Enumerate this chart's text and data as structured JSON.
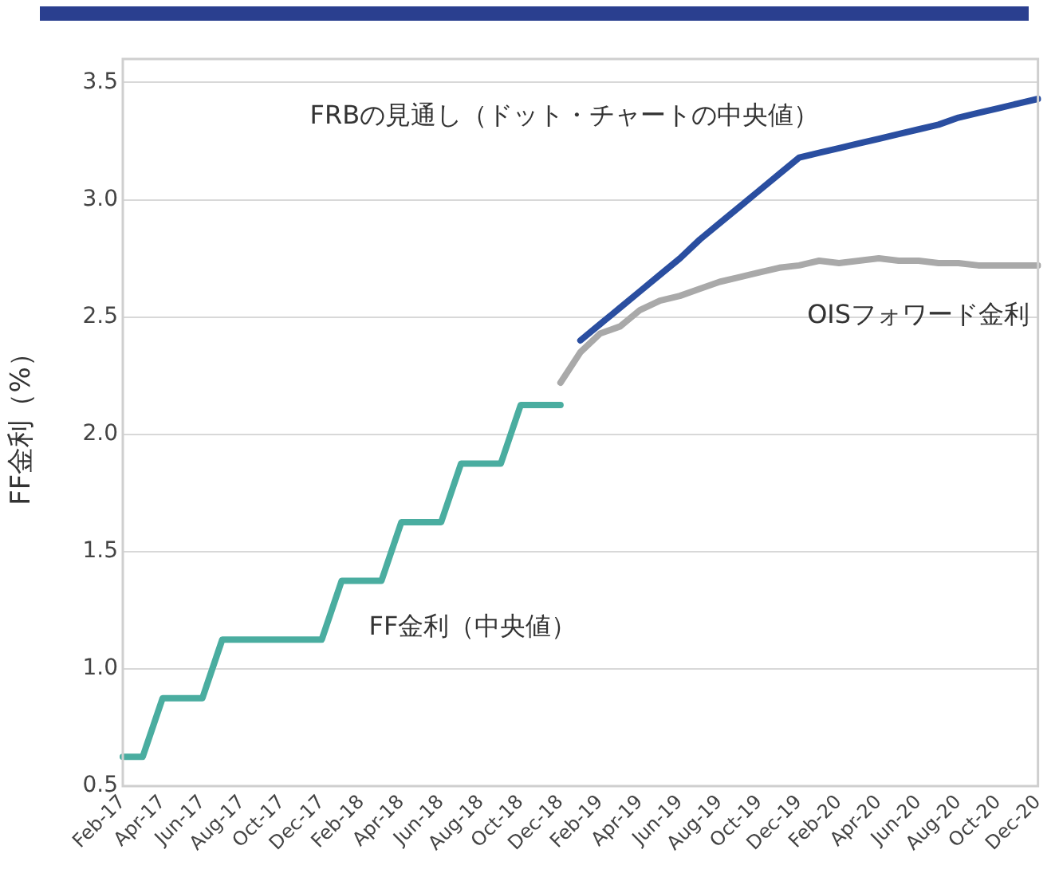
{
  "chart_data": {
    "type": "line",
    "ylabel": "FF金利（%）",
    "categories": [
      "Feb-17",
      null,
      "Apr-17",
      null,
      "Jun-17",
      null,
      "Aug-17",
      null,
      "Oct-17",
      null,
      "Dec-17",
      null,
      "Feb-18",
      null,
      "Apr-18",
      null,
      "Jun-18",
      null,
      "Aug-18",
      null,
      "Oct-18",
      null,
      "Dec-18",
      null,
      "Feb-19",
      null,
      "Apr-19",
      null,
      "Jun-19",
      null,
      "Aug-19",
      null,
      "Oct-19",
      null,
      "Dec-19",
      null,
      "Feb-20",
      null,
      "Apr-20",
      null,
      "Jun-20",
      null,
      "Aug-20",
      null,
      "Oct-20",
      null,
      "Dec-20"
    ],
    "series": [
      {
        "name": "FF金利（中央値）",
        "color": "#4aada0",
        "values": [
          0.625,
          0.625,
          0.875,
          0.875,
          0.875,
          1.125,
          1.125,
          1.125,
          1.125,
          1.125,
          1.125,
          1.375,
          1.375,
          1.375,
          1.625,
          1.625,
          1.625,
          1.875,
          1.875,
          1.875,
          2.125,
          2.125,
          2.125,
          null,
          null,
          null,
          null,
          null,
          null,
          null,
          null,
          null,
          null,
          null,
          null,
          null,
          null,
          null,
          null,
          null,
          null,
          null,
          null,
          null,
          null,
          null,
          null
        ]
      },
      {
        "name": "FRBの見通し（ドット・チャートの中央値）",
        "color": "#2a4ea0",
        "values": [
          null,
          null,
          null,
          null,
          null,
          null,
          null,
          null,
          null,
          null,
          null,
          null,
          null,
          null,
          null,
          null,
          null,
          null,
          null,
          null,
          null,
          null,
          null,
          2.4,
          2.47,
          2.54,
          2.61,
          2.68,
          2.75,
          2.83,
          2.9,
          2.97,
          3.04,
          3.11,
          3.18,
          3.2,
          3.22,
          3.24,
          3.26,
          3.28,
          3.3,
          3.32,
          3.35,
          3.37,
          3.39,
          3.41,
          3.43
        ]
      },
      {
        "name": "OISフォワード金利",
        "color": "#a9a9a9",
        "values": [
          null,
          null,
          null,
          null,
          null,
          null,
          null,
          null,
          null,
          null,
          null,
          null,
          null,
          null,
          null,
          null,
          null,
          null,
          null,
          null,
          null,
          null,
          2.22,
          2.35,
          2.43,
          2.46,
          2.53,
          2.57,
          2.59,
          2.62,
          2.65,
          2.67,
          2.69,
          2.71,
          2.72,
          2.74,
          2.73,
          2.74,
          2.75,
          2.74,
          2.74,
          2.73,
          2.73,
          2.72,
          2.72,
          2.72,
          2.72
        ]
      }
    ],
    "ylim": [
      0.5,
      3.6
    ],
    "yticks": [
      {
        "value": 0.5,
        "label": "0.5"
      },
      {
        "value": 1.0,
        "label": "1.0"
      },
      {
        "value": 1.5,
        "label": "1.5"
      },
      {
        "value": 2.0,
        "label": "2.0"
      },
      {
        "value": 2.5,
        "label": "2.5"
      },
      {
        "value": 3.0,
        "label": "3.0"
      },
      {
        "value": 3.5,
        "label": "3.5"
      }
    ],
    "grid": "y",
    "legend": false,
    "marker": "none",
    "line_style": "solid"
  }
}
